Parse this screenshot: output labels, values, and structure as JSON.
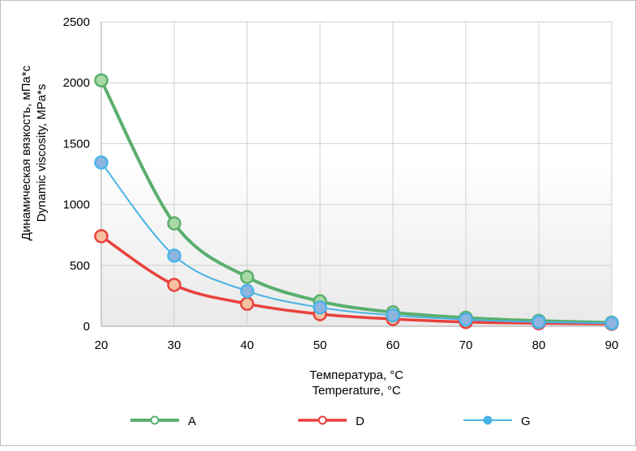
{
  "chart_data": {
    "type": "line",
    "title": "",
    "xlabel": [
      "Температура, °C",
      "Temperature, °C"
    ],
    "ylabel": [
      "Динамическая вязкость, мПа*с",
      "Dynamic viscosity, MPa*s"
    ],
    "x": [
      20,
      30,
      40,
      50,
      60,
      70,
      80,
      90
    ],
    "xlim": [
      20,
      90
    ],
    "ylim": [
      0,
      2500
    ],
    "xticks": [
      20,
      30,
      40,
      50,
      60,
      70,
      80,
      90
    ],
    "yticks": [
      0,
      500,
      1000,
      1500,
      2000,
      2500
    ],
    "grid": true,
    "legend_position": "bottom",
    "series": [
      {
        "name": "A",
        "color": "#5aaf6e",
        "marker_fill": "#a8d9a5",
        "values": [
          2020,
          845,
          405,
          205,
          115,
          70,
          45,
          30
        ]
      },
      {
        "name": "D",
        "color": "#e8413c",
        "marker_fill": "#f3c1a0",
        "values": [
          740,
          340,
          185,
          100,
          60,
          35,
          25,
          20
        ]
      },
      {
        "name": "G",
        "color": "#4ab4e6",
        "marker_fill": "#8fb4e0",
        "values": [
          1345,
          580,
          290,
          155,
          90,
          55,
          35,
          25
        ]
      }
    ]
  }
}
